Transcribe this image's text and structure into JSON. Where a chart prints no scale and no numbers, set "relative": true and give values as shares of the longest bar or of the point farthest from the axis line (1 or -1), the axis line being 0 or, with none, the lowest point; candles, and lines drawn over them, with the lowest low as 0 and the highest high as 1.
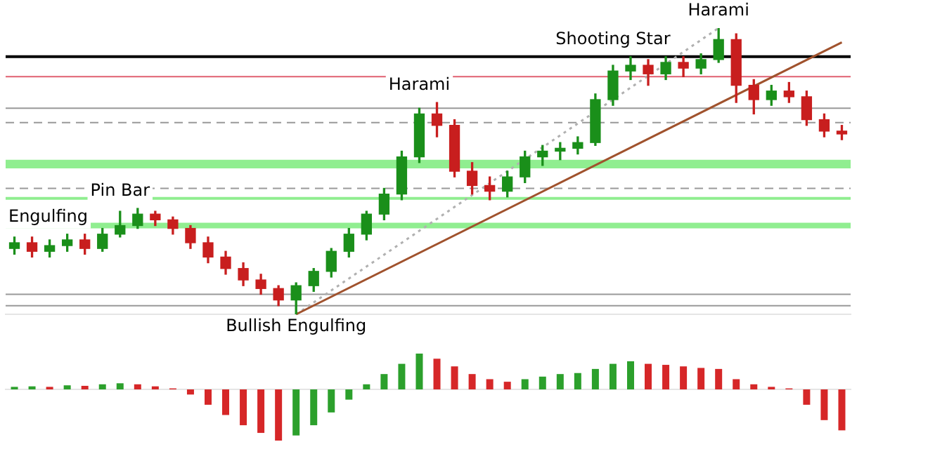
{
  "chart_data": [
    {
      "type": "candlestick",
      "relative": true,
      "grid": false,
      "legend": false,
      "categories": [
        null,
        null,
        null,
        null,
        null,
        null,
        null,
        null,
        null,
        null,
        null,
        null,
        null,
        null,
        null,
        null,
        null,
        null,
        null,
        null,
        null,
        null,
        null,
        null,
        null,
        null,
        null,
        null,
        null,
        null,
        null,
        null,
        null,
        null,
        null,
        null,
        null,
        null,
        null,
        null,
        null,
        null,
        null,
        null,
        null,
        null,
        null,
        null
      ],
      "ohlc": [
        [
          0.23,
          0.27,
          0.21,
          0.25
        ],
        [
          0.25,
          0.27,
          0.2,
          0.22
        ],
        [
          0.22,
          0.26,
          0.2,
          0.24
        ],
        [
          0.24,
          0.28,
          0.22,
          0.26
        ],
        [
          0.26,
          0.28,
          0.21,
          0.23
        ],
        [
          0.23,
          0.3,
          0.22,
          0.28
        ],
        [
          0.28,
          0.36,
          0.27,
          0.31
        ],
        [
          0.31,
          0.37,
          0.3,
          0.35
        ],
        [
          0.35,
          0.36,
          0.31,
          0.33
        ],
        [
          0.33,
          0.34,
          0.28,
          0.3
        ],
        [
          0.3,
          0.31,
          0.23,
          0.25
        ],
        [
          0.25,
          0.27,
          0.18,
          0.2
        ],
        [
          0.2,
          0.22,
          0.14,
          0.16
        ],
        [
          0.16,
          0.18,
          0.1,
          0.12
        ],
        [
          0.12,
          0.14,
          0.07,
          0.09
        ],
        [
          0.09,
          0.1,
          0.03,
          0.05
        ],
        [
          0.05,
          0.11,
          0.0,
          0.1
        ],
        [
          0.1,
          0.16,
          0.08,
          0.15
        ],
        [
          0.15,
          0.23,
          0.13,
          0.22
        ],
        [
          0.22,
          0.3,
          0.2,
          0.28
        ],
        [
          0.28,
          0.36,
          0.26,
          0.35
        ],
        [
          0.35,
          0.44,
          0.33,
          0.42
        ],
        [
          0.42,
          0.57,
          0.4,
          0.55
        ],
        [
          0.55,
          0.72,
          0.53,
          0.7
        ],
        [
          0.7,
          0.74,
          0.62,
          0.66
        ],
        [
          0.66,
          0.68,
          0.48,
          0.5
        ],
        [
          0.5,
          0.53,
          0.42,
          0.45
        ],
        [
          0.45,
          0.48,
          0.4,
          0.43
        ],
        [
          0.43,
          0.5,
          0.41,
          0.48
        ],
        [
          0.48,
          0.57,
          0.46,
          0.55
        ],
        [
          0.55,
          0.59,
          0.52,
          0.57
        ],
        [
          0.57,
          0.6,
          0.54,
          0.58
        ],
        [
          0.58,
          0.62,
          0.56,
          0.6
        ],
        [
          0.6,
          0.77,
          0.59,
          0.75
        ],
        [
          0.75,
          0.87,
          0.73,
          0.85
        ],
        [
          0.85,
          0.9,
          0.82,
          0.87
        ],
        [
          0.87,
          0.89,
          0.8,
          0.84
        ],
        [
          0.84,
          0.9,
          0.82,
          0.88
        ],
        [
          0.88,
          0.9,
          0.83,
          0.86
        ],
        [
          0.86,
          0.91,
          0.84,
          0.89
        ],
        [
          0.89,
          1.0,
          0.88,
          0.96
        ],
        [
          0.96,
          0.98,
          0.74,
          0.8
        ],
        [
          0.8,
          0.82,
          0.7,
          0.75
        ],
        [
          0.75,
          0.8,
          0.73,
          0.78
        ],
        [
          0.78,
          0.81,
          0.74,
          0.76
        ],
        [
          0.76,
          0.78,
          0.66,
          0.68
        ],
        [
          0.68,
          0.7,
          0.62,
          0.64
        ],
        [
          0.64,
          0.66,
          0.61,
          0.63
        ]
      ],
      "series": [
        {
          "type": "line",
          "color": "#a0522d",
          "values": [
            null,
            null,
            null,
            null,
            null,
            null,
            null,
            null,
            null,
            null,
            null,
            null,
            null,
            null,
            null,
            null,
            0.0,
            null,
            null,
            null,
            null,
            null,
            null,
            null,
            null,
            null,
            null,
            null,
            null,
            null,
            null,
            null,
            null,
            null,
            null,
            null,
            null,
            null,
            null,
            null,
            null,
            null,
            null,
            null,
            null,
            null,
            null,
            0.95
          ]
        },
        {
          "type": "line",
          "color": "#b0b0b0",
          "line_style": "dotted",
          "values": [
            null,
            null,
            null,
            null,
            null,
            null,
            null,
            null,
            null,
            null,
            null,
            null,
            null,
            null,
            null,
            null,
            0.0,
            null,
            null,
            null,
            null,
            null,
            null,
            null,
            null,
            null,
            null,
            null,
            null,
            null,
            null,
            null,
            null,
            null,
            null,
            null,
            null,
            null,
            null,
            null,
            1.0,
            null,
            null,
            null,
            null,
            null,
            null,
            null
          ]
        }
      ],
      "ref_lines": [
        {
          "axis": "y",
          "value": 0.9,
          "color": "#000000"
        },
        {
          "axis": "y",
          "value": 0.83,
          "color": "#e06070"
        },
        {
          "axis": "y",
          "value": 0.72,
          "color": "#999999"
        },
        {
          "axis": "y",
          "value": 0.67,
          "color": "#999999",
          "line_style": "dashed"
        },
        {
          "axis": "y",
          "value": 0.44,
          "color": "#999999",
          "line_style": "dashed"
        },
        {
          "axis": "y",
          "value": 0.07,
          "color": "#999999"
        },
        {
          "axis": "y",
          "value": 0.03,
          "color": "#999999"
        }
      ],
      "bands": [
        {
          "axis": "y",
          "from": 0.51,
          "to": 0.54,
          "color": "#90ee90"
        },
        {
          "axis": "y",
          "from": 0.4,
          "to": 0.41,
          "color": "#90ee90"
        },
        {
          "axis": "y",
          "from": 0.3,
          "to": 0.32,
          "color": "#90ee90"
        }
      ],
      "annotations": [
        "Harami",
        "Shooting Star",
        "Harami",
        "Pin Bar",
        "Engulfing",
        "Bullish Engulfing"
      ]
    },
    {
      "type": "bar",
      "relative": true,
      "grid": false,
      "legend": false,
      "categories": [
        null,
        null,
        null,
        null,
        null,
        null,
        null,
        null,
        null,
        null,
        null,
        null,
        null,
        null,
        null,
        null,
        null,
        null,
        null,
        null,
        null,
        null,
        null,
        null,
        null,
        null,
        null,
        null,
        null,
        null,
        null,
        null,
        null,
        null,
        null,
        null,
        null,
        null,
        null,
        null,
        null,
        null,
        null,
        null,
        null,
        null,
        null,
        null
      ],
      "values": [
        0.05,
        0.06,
        0.05,
        0.08,
        0.07,
        0.1,
        0.12,
        0.1,
        0.06,
        0.02,
        -0.1,
        -0.3,
        -0.5,
        -0.7,
        -0.85,
        -1.0,
        -0.9,
        -0.7,
        -0.45,
        -0.2,
        0.1,
        0.3,
        0.5,
        0.7,
        0.6,
        0.45,
        0.3,
        0.2,
        0.15,
        0.2,
        0.25,
        0.3,
        0.32,
        0.4,
        0.5,
        0.55,
        0.5,
        0.48,
        0.45,
        0.42,
        0.4,
        0.2,
        0.1,
        0.05,
        0.02,
        -0.3,
        -0.6,
        -0.8
      ],
      "colors": [
        "#2ca02c",
        "#2ca02c",
        "#d62728",
        "#2ca02c",
        "#d62728",
        "#2ca02c",
        "#2ca02c",
        "#d62728",
        "#d62728",
        "#d62728",
        "#d62728",
        "#d62728",
        "#d62728",
        "#d62728",
        "#d62728",
        "#d62728",
        "#2ca02c",
        "#2ca02c",
        "#2ca02c",
        "#2ca02c",
        "#2ca02c",
        "#2ca02c",
        "#2ca02c",
        "#2ca02c",
        "#d62728",
        "#d62728",
        "#d62728",
        "#d62728",
        "#d62728",
        "#2ca02c",
        "#2ca02c",
        "#2ca02c",
        "#2ca02c",
        "#2ca02c",
        "#2ca02c",
        "#2ca02c",
        "#d62728",
        "#d62728",
        "#d62728",
        "#d62728",
        "#d62728",
        "#d62728",
        "#d62728",
        "#d62728",
        "#d62728",
        "#d62728",
        "#d62728",
        "#d62728"
      ]
    }
  ]
}
